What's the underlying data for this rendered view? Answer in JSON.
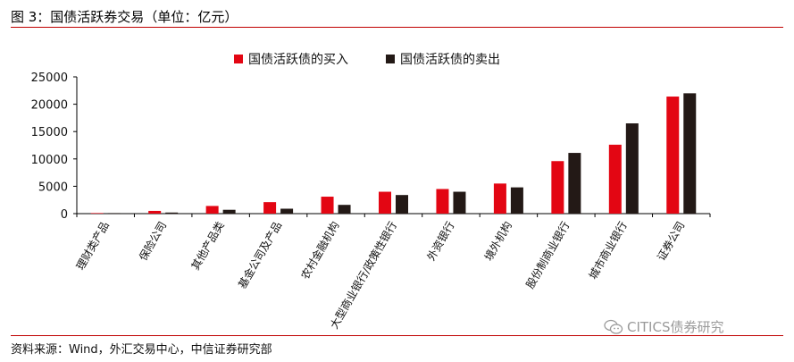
{
  "figure": {
    "title": "图 3：国债活跃券交易（单位：亿元）",
    "source": "资料来源：Wind，外汇交易中心，中信证券研究部",
    "watermark": "CITICS债券研究"
  },
  "colors": {
    "buy": "#e30613",
    "sell": "#231916",
    "rule": "#c00000"
  },
  "chart_data": {
    "type": "bar",
    "categories": [
      "理财类产品",
      "保险公司",
      "其他产品类",
      "基金公司及产品",
      "农村金融机构",
      "大型商业银行/政策性银行",
      "外资银行",
      "境外机构",
      "股份制商业银行",
      "城市商业银行",
      "证券公司"
    ],
    "series": [
      {
        "name": "国债活跃债的买入",
        "values": [
          100,
          500,
          1400,
          2100,
          3100,
          4000,
          4500,
          5500,
          9600,
          12600,
          21400
        ]
      },
      {
        "name": "国债活跃债的卖出",
        "values": [
          100,
          200,
          700,
          900,
          1600,
          3400,
          4000,
          4800,
          11100,
          16500,
          22000
        ]
      }
    ],
    "ylim": [
      0,
      25000
    ],
    "yticks": [
      "0",
      "5000",
      "10000",
      "15000",
      "20000",
      "25000"
    ],
    "legend": "top",
    "grid": false
  }
}
